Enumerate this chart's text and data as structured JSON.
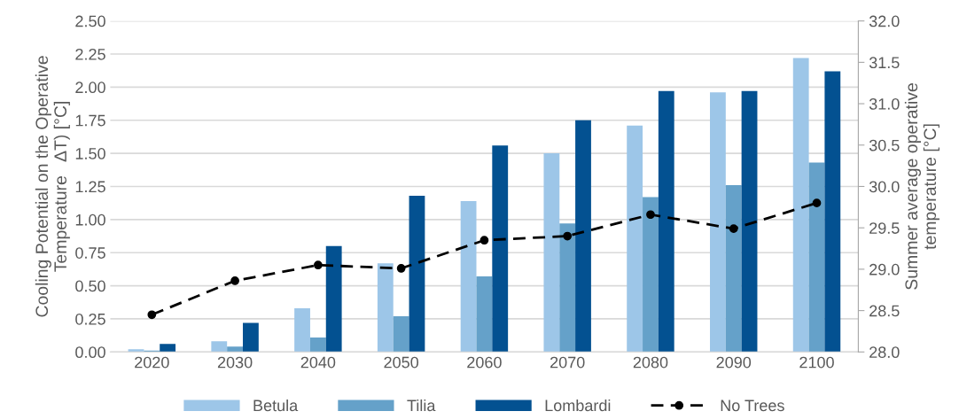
{
  "chart_data": {
    "type": "bar",
    "categories": [
      "2020",
      "2030",
      "2040",
      "2050",
      "2060",
      "2070",
      "2080",
      "2090",
      "2100"
    ],
    "ylabel": "Cooling Potential on the Operative\nTemperature   ΔT) [°C]",
    "y2label": "Summer average operative\ntemperature [°C]",
    "series": [
      {
        "name": "Betula",
        "color": "#9dc6e8",
        "values": [
          0.02,
          0.08,
          0.33,
          0.67,
          1.14,
          1.5,
          1.71,
          1.96,
          2.22
        ]
      },
      {
        "name": "Tilia",
        "color": "#65a1c9",
        "values": [
          0.01,
          0.04,
          0.11,
          0.27,
          0.57,
          0.97,
          1.17,
          1.26,
          1.43
        ]
      },
      {
        "name": "Lombardi",
        "color": "#035191",
        "values": [
          0.06,
          0.22,
          0.8,
          1.18,
          1.56,
          1.75,
          1.97,
          1.97,
          2.12
        ]
      },
      {
        "name": "No Trees",
        "type": "line",
        "axis": "y2",
        "color": "#000000",
        "marker": "circle",
        "line_style": "dashed",
        "values": [
          28.45,
          28.86,
          29.05,
          29.01,
          29.35,
          29.4,
          29.66,
          29.49,
          29.8
        ]
      }
    ],
    "ylim": [
      0,
      2.5
    ],
    "yticks": [
      {
        "value": 0,
        "label": "0.00"
      },
      {
        "value": 0.25,
        "label": "0.25"
      },
      {
        "value": 0.5,
        "label": "0.50"
      },
      {
        "value": 0.75,
        "label": "0.75"
      },
      {
        "value": 1,
        "label": "1.00"
      },
      {
        "value": 1.25,
        "label": "1.25"
      },
      {
        "value": 1.5,
        "label": "1.50"
      },
      {
        "value": 1.75,
        "label": "1.75"
      },
      {
        "value": 2,
        "label": "2.00"
      },
      {
        "value": 2.25,
        "label": "2.25"
      },
      {
        "value": 2.5,
        "label": "2.50"
      }
    ],
    "y2lim": [
      28,
      32
    ],
    "y2ticks": [
      {
        "value": 28,
        "label": "28.0"
      },
      {
        "value": 28.5,
        "label": "28.5"
      },
      {
        "value": 29,
        "label": "29.0"
      },
      {
        "value": 29.5,
        "label": "29.5"
      },
      {
        "value": 30,
        "label": "30.0"
      },
      {
        "value": 30.5,
        "label": "30.5"
      },
      {
        "value": 31,
        "label": "31.0"
      },
      {
        "value": 31.5,
        "label": "31.5"
      },
      {
        "value": 32,
        "label": "32.0"
      }
    ],
    "grid": "y",
    "legend": "bottom"
  }
}
